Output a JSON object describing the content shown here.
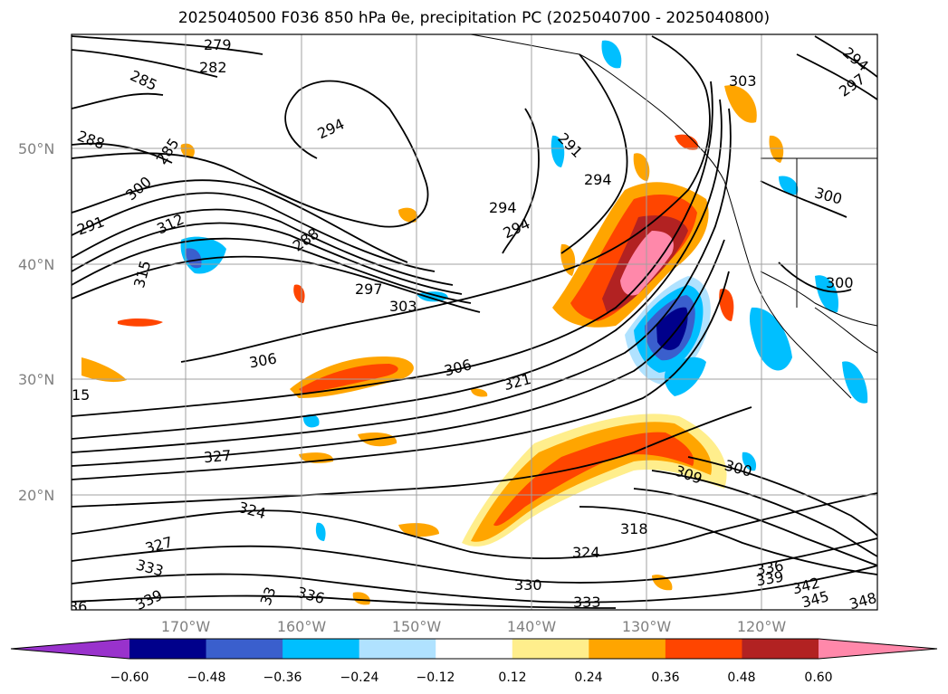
{
  "title": "2025040500 F036 850 hPa θe, precipitation PC (2025040700 - 2025040800)",
  "lat_labels": [
    "50°N",
    "40°N",
    "30°N",
    "20°N"
  ],
  "lon_labels": [
    "170°W",
    "160°W",
    "150°W",
    "140°W",
    "130°W",
    "120°W"
  ],
  "contour_labels": [
    "279",
    "282",
    "285",
    "288",
    "285",
    "300",
    "291",
    "312",
    "315",
    "288",
    "294",
    "294",
    "294",
    "291",
    "294",
    "297",
    "303",
    "303",
    "300",
    "300",
    "306",
    "306",
    "321",
    "327",
    "324",
    "327",
    "333",
    "339",
    "336",
    "333",
    "330",
    "318",
    "324",
    "309",
    "300",
    "336",
    "339",
    "342",
    "345",
    "348",
    "294",
    "297",
    "15",
    "33",
    "36"
  ],
  "colorbar": {
    "ticks": [
      "−0.60",
      "−0.48",
      "−0.36",
      "−0.24",
      "−0.12",
      "0.12",
      "0.24",
      "0.36",
      "0.48",
      "0.60"
    ],
    "colors": [
      "#9932cc",
      "#00008b",
      "#3a5fcd",
      "#00bfff",
      "#b0e2ff",
      "#ffffff",
      "#ffee8c",
      "#ffa500",
      "#ff4500",
      "#b22222",
      "#ff88aa"
    ]
  },
  "colors": {
    "grid": "#a0a0a0",
    "contour": "#000000"
  }
}
